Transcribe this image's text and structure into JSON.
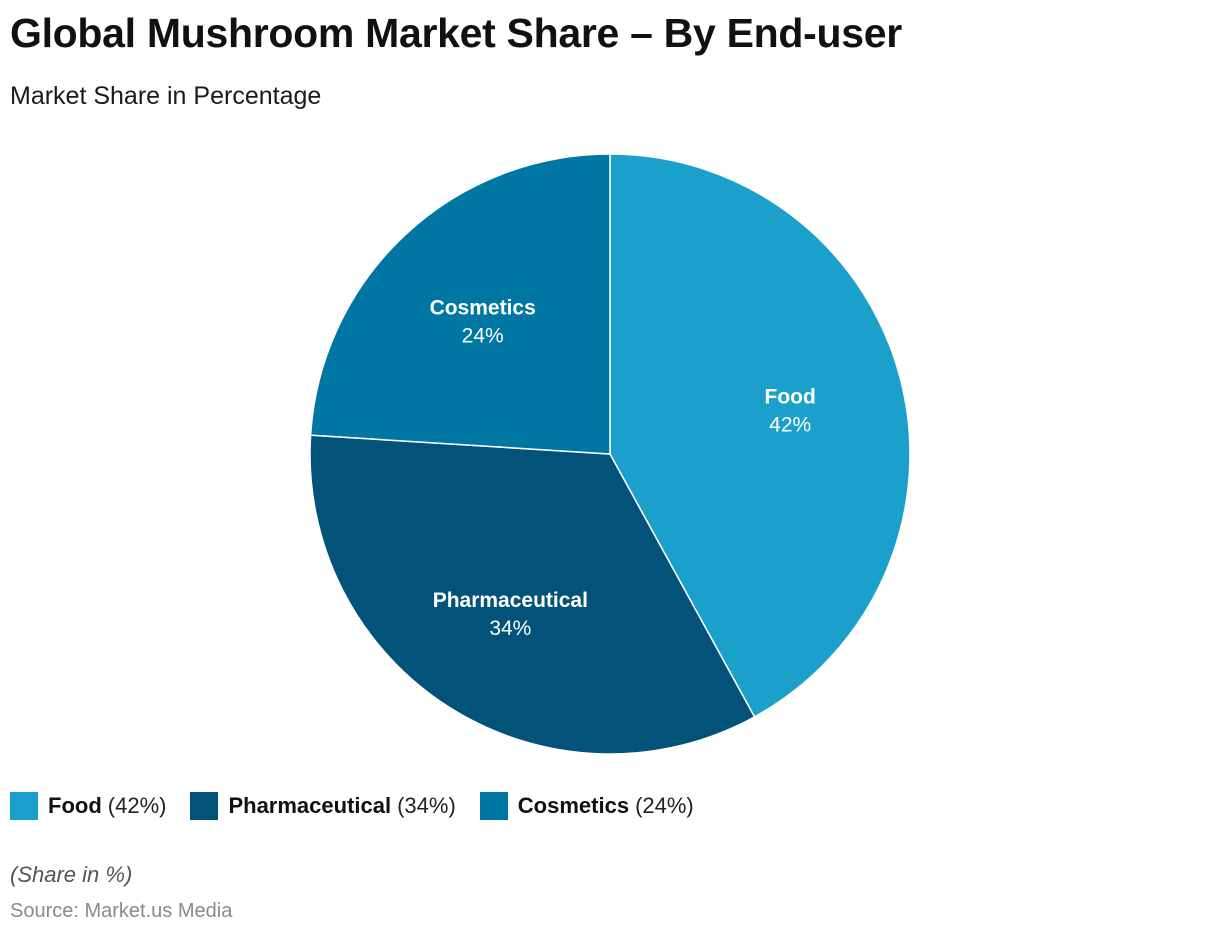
{
  "chart_data": {
    "type": "pie",
    "title": "Global Mushroom Market Share – By End-user",
    "subtitle": "Market Share in Percentage",
    "unit": "%",
    "legend_position": "bottom-left",
    "slices": [
      {
        "name": "Food",
        "value": 42,
        "label": "42%",
        "legend_value": "(42%)",
        "color": "#1ba0cc"
      },
      {
        "name": "Pharmaceutical",
        "value": 34,
        "label": "34%",
        "legend_value": "(34%)",
        "color": "#02527a"
      },
      {
        "name": "Cosmetics",
        "value": 24,
        "label": "24%",
        "legend_value": "(24%)",
        "color": "#0076a3"
      }
    ]
  },
  "footer": {
    "note": "(Share in %)",
    "source": "Source: Market.us Media"
  }
}
